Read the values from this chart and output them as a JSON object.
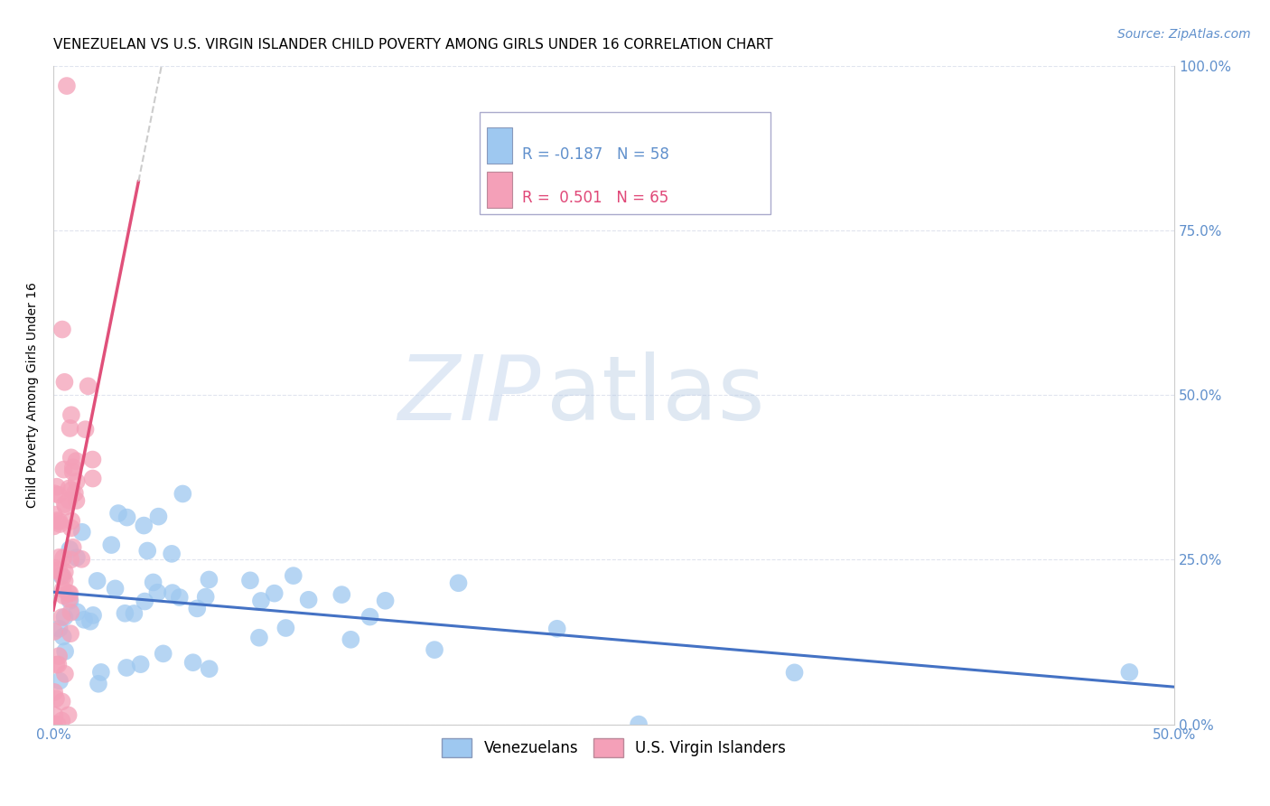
{
  "title": "VENEZUELAN VS U.S. VIRGIN ISLANDER CHILD POVERTY AMONG GIRLS UNDER 16 CORRELATION CHART",
  "source": "Source: ZipAtlas.com",
  "ylabel": "Child Poverty Among Girls Under 16",
  "xlim": [
    0.0,
    0.5
  ],
  "ylim": [
    0.0,
    1.0
  ],
  "xticks": [
    0.0,
    0.5
  ],
  "xticklabels": [
    "0.0%",
    "50.0%"
  ],
  "yticks": [
    0.0,
    0.25,
    0.5,
    0.75,
    1.0
  ],
  "yticklabels_right": [
    "0.0%",
    "25.0%",
    "50.0%",
    "75.0%",
    "100.0%"
  ],
  "venezuelan_color": "#9EC8F0",
  "usvi_color": "#F4A0B8",
  "venezuelan_line_color": "#4472C4",
  "usvi_line_color": "#E0507A",
  "usvi_dashed_color": "#CCCCCC",
  "R_venezuelan": -0.187,
  "N_venezuelan": 58,
  "R_usvi": 0.501,
  "N_usvi": 65,
  "legend_label_venezuelan": "Venezuelans",
  "legend_label_usvi": "U.S. Virgin Islanders",
  "watermark_zip": "ZIP",
  "watermark_atlas": "atlas",
  "background_color": "#FFFFFF",
  "title_fontsize": 11,
  "source_fontsize": 10,
  "axis_label_fontsize": 10,
  "tick_fontsize": 11,
  "legend_fontsize": 12,
  "grid_color": "#E0E4EE",
  "tick_color": "#6090CC"
}
